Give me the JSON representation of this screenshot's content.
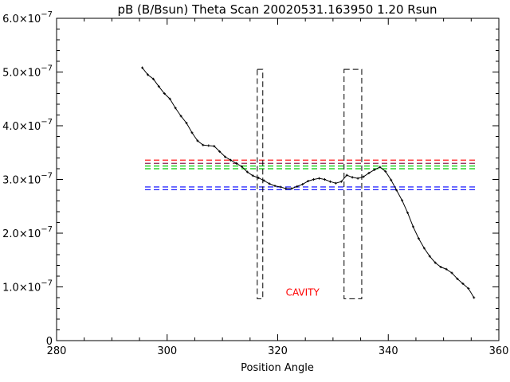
{
  "chart_data": {
    "type": "line",
    "title": "pB (B/Bsun) Theta Scan 20020531.163950 1.20 Rsun",
    "xlabel": "Position Angle",
    "ylabel": "",
    "xlim": [
      280,
      360
    ],
    "ylim": [
      0,
      6e-07
    ],
    "x_ticks": [
      280,
      300,
      320,
      340,
      360
    ],
    "x_tick_labels": [
      "280",
      "300",
      "320",
      "340",
      "360"
    ],
    "y_ticks": [
      0,
      1e-07,
      2e-07,
      3e-07,
      4e-07,
      5e-07,
      6e-07
    ],
    "y_tick_labels": [
      {
        "mantissa": "0",
        "exponent": ""
      },
      {
        "mantissa": "1.0×10",
        "exponent": "−7"
      },
      {
        "mantissa": "2.0×10",
        "exponent": "−7"
      },
      {
        "mantissa": "3.0×10",
        "exponent": "−7"
      },
      {
        "mantissa": "4.0×10",
        "exponent": "−7"
      },
      {
        "mantissa": "5.0×10",
        "exponent": "−7"
      },
      {
        "mantissa": "6.0×10",
        "exponent": "−7"
      }
    ],
    "grid": false,
    "series": [
      {
        "color": "#000000",
        "x": [
          295.5,
          296.5,
          297.5,
          298.5,
          299.5,
          300.5,
          301.5,
          302.5,
          303.5,
          304.5,
          305.5,
          306.5,
          307.5,
          308.5,
          309.5,
          310.5,
          311.5,
          312.5,
          313.5,
          314.5,
          315.5,
          316.5,
          317.5,
          318.5,
          319.5,
          320.5,
          321.5,
          322.5,
          323.5,
          324.5,
          325.5,
          326.5,
          327.5,
          328.5,
          329.5,
          330.5,
          331.5,
          332.5,
          333.5,
          334.5,
          335.5,
          336.5,
          337.5,
          338.5,
          339.5,
          340.5,
          341.5,
          342.5,
          343.5,
          344.5,
          345.5,
          346.5,
          347.5,
          348.5,
          349.5,
          350.5,
          351.5,
          352.5,
          353.5,
          354.5,
          355.5
        ],
        "values": [
          5.08e-07,
          4.95e-07,
          4.87e-07,
          4.73e-07,
          4.6e-07,
          4.5e-07,
          4.33e-07,
          4.18e-07,
          4.05e-07,
          3.87e-07,
          3.72e-07,
          3.64e-07,
          3.63e-07,
          3.62e-07,
          3.52e-07,
          3.42e-07,
          3.36e-07,
          3.3e-07,
          3.24e-07,
          3.14e-07,
          3.07e-07,
          3.03e-07,
          2.98e-07,
          2.92e-07,
          2.88e-07,
          2.86e-07,
          2.83e-07,
          2.83e-07,
          2.87e-07,
          2.91e-07,
          2.97e-07,
          3e-07,
          3.02e-07,
          3e-07,
          2.96e-07,
          2.93e-07,
          2.96e-07,
          3.08e-07,
          3.04e-07,
          3.02e-07,
          3.05e-07,
          3.12e-07,
          3.18e-07,
          3.23e-07,
          3.15e-07,
          2.99e-07,
          2.8e-07,
          2.61e-07,
          2.38e-07,
          2.12e-07,
          1.9e-07,
          1.72e-07,
          1.57e-07,
          1.45e-07,
          1.37e-07,
          1.33e-07,
          1.26e-07,
          1.15e-07,
          1.06e-07,
          9.7e-08,
          8e-08
        ]
      }
    ],
    "horizontal_lines": [
      {
        "y": 3.36e-07,
        "color": "#ff0000",
        "style": "dashed"
      },
      {
        "y": 3.3e-07,
        "color": "#8b2252",
        "style": "dashed"
      },
      {
        "y": 3.25e-07,
        "color": "#00cc00",
        "style": "dashed"
      },
      {
        "y": 3.2e-07,
        "color": "#00cc00",
        "style": "dashed"
      },
      {
        "y": 2.86e-07,
        "color": "#0000ff",
        "style": "dashed"
      },
      {
        "y": 2.81e-07,
        "color": "#0000ff",
        "style": "dashed"
      }
    ],
    "boxes": [
      {
        "x0": 316.3,
        "x1": 317.3,
        "y0": 7.8e-08,
        "y1": 5.05e-07,
        "color": "#000000",
        "style": "dashed"
      },
      {
        "x0": 332.0,
        "x1": 335.2,
        "y0": 7.8e-08,
        "y1": 5.05e-07,
        "color": "#000000",
        "style": "dashed"
      }
    ],
    "annotations": [
      {
        "text": "CAVITY",
        "x": 324.5,
        "y": 9e-08,
        "color": "#ff0000"
      }
    ]
  }
}
